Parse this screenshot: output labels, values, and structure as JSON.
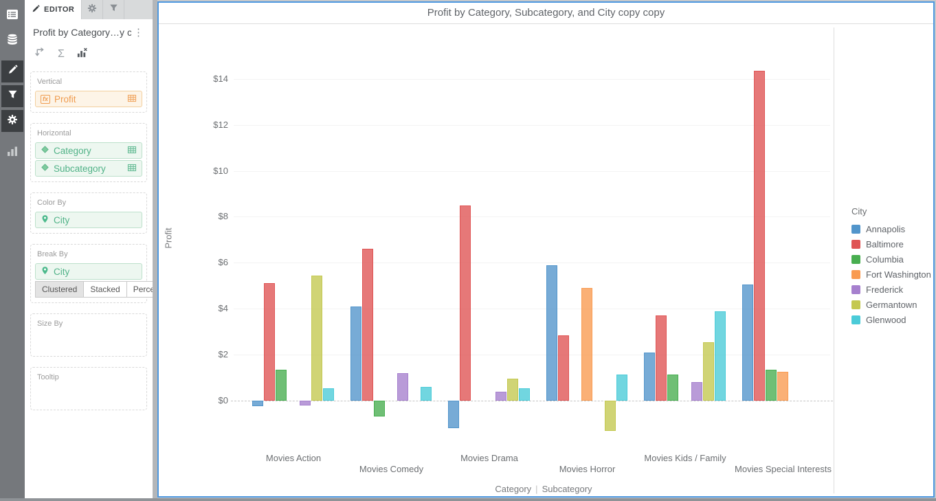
{
  "sidebar": {
    "items": [
      {
        "icon": "list",
        "active": false
      },
      {
        "icon": "datasource",
        "active": false
      },
      {
        "icon": "pencil",
        "active": true
      },
      {
        "icon": "filter",
        "active": true
      },
      {
        "icon": "gear",
        "active": true
      },
      {
        "icon": "bar-chart",
        "active": false
      }
    ]
  },
  "editor_panel": {
    "tabs": [
      {
        "label": "EDITOR",
        "icon": "pencil",
        "active": true
      },
      {
        "label": "",
        "icon": "gear",
        "active": false
      },
      {
        "label": "",
        "icon": "filter",
        "active": false
      }
    ],
    "title": "Profit by Category…y copy",
    "icons": {
      "kebab_glyph": "⋮",
      "sigma_glyph": "Σ",
      "fx_glyph": "fx"
    },
    "sections": {
      "vertical": {
        "label": "Vertical",
        "field": {
          "text": "Profit",
          "icon": "fx",
          "right_icon": "grid"
        }
      },
      "horizontal": {
        "label": "Horizontal",
        "fields": [
          {
            "text": "Category",
            "icon": "diamond",
            "right_icon": "grid"
          },
          {
            "text": "Subcategory",
            "icon": "diamond",
            "right_icon": "grid"
          }
        ]
      },
      "color_by": {
        "label": "Color By",
        "field": {
          "text": "City",
          "icon": "pin"
        }
      },
      "break_by": {
        "label": "Break By",
        "field": {
          "text": "City",
          "icon": "pin"
        },
        "modes": [
          "Clustered",
          "Stacked",
          "Percent"
        ],
        "selected_mode": "Clustered"
      },
      "size_by": {
        "label": "Size By"
      },
      "tooltip": {
        "label": "Tooltip"
      }
    }
  },
  "chart_data": {
    "type": "bar",
    "variant": "clustered",
    "title": "Profit by Category, Subcategory, and City copy copy",
    "ylabel": "Profit",
    "xlabel_parts": [
      "Category",
      "Subcategory"
    ],
    "legend_title": "City",
    "legend_position": "right",
    "grid": true,
    "ylim": [
      -2,
      15
    ],
    "ytick_values": [
      0,
      2,
      4,
      6,
      8,
      10,
      12,
      14
    ],
    "ytick_labels": [
      "$0",
      "$2",
      "$4",
      "$6",
      "$8",
      "$10",
      "$12",
      "$14"
    ],
    "categories": [
      "Movies Action",
      "Movies Comedy",
      "Movies Drama",
      "Movies Horror",
      "Movies Kids / Family",
      "Movies Special Interests"
    ],
    "series": [
      {
        "name": "Annapolis",
        "color": "#5295CB",
        "values": [
          -0.25,
          4.1,
          -1.2,
          5.9,
          2.1,
          5.05
        ]
      },
      {
        "name": "Baltimore",
        "color": "#DF5454",
        "values": [
          5.1,
          6.6,
          8.5,
          2.85,
          3.7,
          14.35
        ]
      },
      {
        "name": "Columbia",
        "color": "#48AE50",
        "values": [
          1.35,
          -0.7,
          null,
          null,
          1.15,
          1.35
        ]
      },
      {
        "name": "Fort Washington",
        "color": "#F99B51",
        "values": [
          null,
          null,
          null,
          4.9,
          null,
          1.25
        ]
      },
      {
        "name": "Frederick",
        "color": "#A680CE",
        "values": [
          -0.2,
          1.2,
          0.4,
          null,
          0.8,
          null
        ]
      },
      {
        "name": "Germantown",
        "color": "#C4C850",
        "values": [
          5.45,
          null,
          0.95,
          -1.3,
          2.55,
          null
        ]
      },
      {
        "name": "Glenwood",
        "color": "#4BCBD8",
        "values": [
          0.55,
          0.6,
          0.55,
          1.15,
          3.9,
          null
        ]
      }
    ]
  }
}
